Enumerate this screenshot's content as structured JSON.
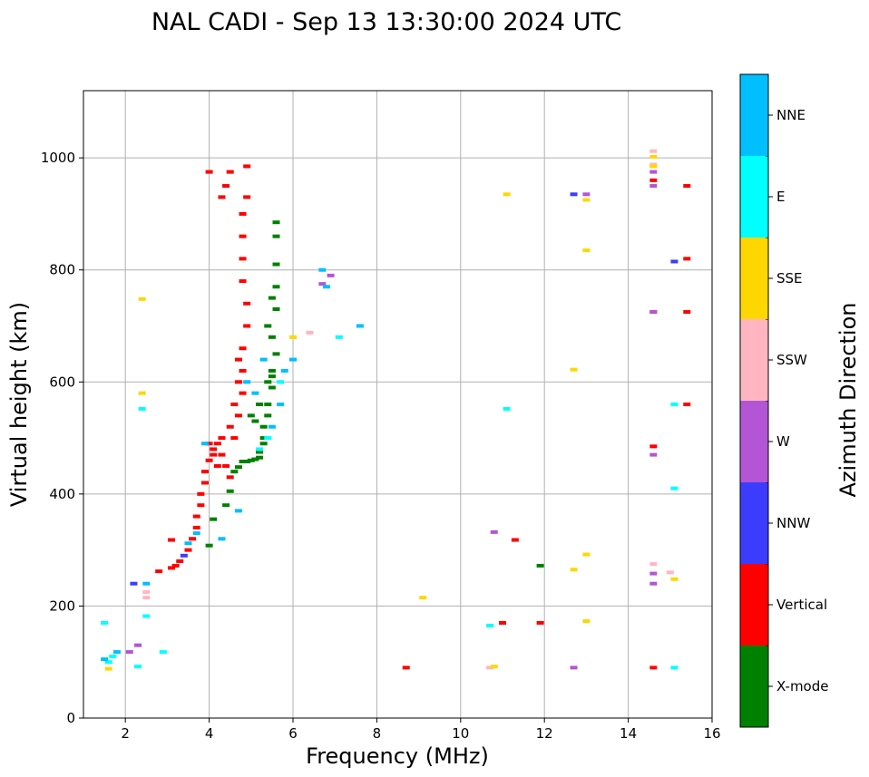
{
  "chart_data": {
    "type": "scatter",
    "title": "NAL CADI - Sep 13 13:30:00 2024 UTC",
    "xlabel": "Frequency (MHz)",
    "ylabel": "Virtual height (km)",
    "xlim": [
      1,
      16
    ],
    "ylim": [
      0,
      1120
    ],
    "xticks": [
      2,
      4,
      6,
      8,
      10,
      12,
      14,
      16
    ],
    "yticks": [
      0,
      200,
      400,
      600,
      800,
      1000
    ],
    "grid": true,
    "colorbar": {
      "label": "Azimuth Direction",
      "categories": [
        {
          "name": "X-mode",
          "color": "#008000"
        },
        {
          "name": "Vertical",
          "color": "#ff0000"
        },
        {
          "name": "NNW",
          "color": "#3c3cff"
        },
        {
          "name": "W",
          "color": "#b455d6"
        },
        {
          "name": "SSW",
          "color": "#ffb6c1"
        },
        {
          "name": "SSE",
          "color": "#ffd700"
        },
        {
          "name": "E",
          "color": "#00ffff"
        },
        {
          "name": "NNE",
          "color": "#00bfff"
        }
      ]
    },
    "series": [
      {
        "name": "X-mode",
        "points": [
          [
            4.1,
            355
          ],
          [
            4.4,
            380
          ],
          [
            4.5,
            405
          ],
          [
            4.6,
            440
          ],
          [
            4.7,
            448
          ],
          [
            4.8,
            458
          ],
          [
            4.9,
            458
          ],
          [
            5.0,
            460
          ],
          [
            5.1,
            462
          ],
          [
            5.2,
            465
          ],
          [
            5.2,
            475
          ],
          [
            5.3,
            490
          ],
          [
            5.3,
            500
          ],
          [
            5.3,
            520
          ],
          [
            5.4,
            540
          ],
          [
            5.4,
            560
          ],
          [
            5.5,
            590
          ],
          [
            5.5,
            610
          ],
          [
            5.6,
            650
          ],
          [
            5.5,
            680
          ],
          [
            5.6,
            730
          ],
          [
            5.5,
            750
          ],
          [
            5.6,
            770
          ],
          [
            5.6,
            810
          ],
          [
            5.6,
            860
          ],
          [
            5.6,
            885
          ],
          [
            11.9,
            272
          ],
          [
            11.0,
            170
          ],
          [
            4.0,
            308
          ],
          [
            5.0,
            540
          ],
          [
            5.1,
            530
          ],
          [
            5.2,
            560
          ],
          [
            5.4,
            600
          ],
          [
            5.5,
            620
          ],
          [
            5.4,
            700
          ]
        ]
      },
      {
        "name": "Vertical",
        "points": [
          [
            2.8,
            262
          ],
          [
            3.1,
            268
          ],
          [
            3.2,
            272
          ],
          [
            3.3,
            280
          ],
          [
            3.5,
            300
          ],
          [
            3.6,
            320
          ],
          [
            3.7,
            340
          ],
          [
            3.7,
            360
          ],
          [
            3.8,
            380
          ],
          [
            3.8,
            400
          ],
          [
            3.9,
            420
          ],
          [
            3.9,
            440
          ],
          [
            4.0,
            460
          ],
          [
            4.1,
            480
          ],
          [
            4.2,
            490
          ],
          [
            4.3,
            470
          ],
          [
            4.4,
            450
          ],
          [
            4.5,
            430
          ],
          [
            4.6,
            500
          ],
          [
            4.7,
            540
          ],
          [
            4.8,
            580
          ],
          [
            4.8,
            620
          ],
          [
            4.8,
            660
          ],
          [
            4.9,
            700
          ],
          [
            4.9,
            740
          ],
          [
            4.8,
            780
          ],
          [
            4.8,
            820
          ],
          [
            4.8,
            860
          ],
          [
            4.8,
            900
          ],
          [
            4.9,
            930
          ],
          [
            4.3,
            930
          ],
          [
            4.4,
            950
          ],
          [
            4.5,
            975
          ],
          [
            4.0,
            975
          ],
          [
            4.9,
            985
          ],
          [
            4.0,
            490
          ],
          [
            4.1,
            470
          ],
          [
            4.2,
            450
          ],
          [
            4.3,
            500
          ],
          [
            4.5,
            520
          ],
          [
            4.6,
            560
          ],
          [
            4.7,
            600
          ],
          [
            4.7,
            640
          ],
          [
            8.7,
            90
          ],
          [
            11.0,
            170
          ],
          [
            11.3,
            318
          ],
          [
            11.9,
            170
          ],
          [
            14.6,
            90
          ],
          [
            14.6,
            485
          ],
          [
            14.6,
            725
          ],
          [
            14.6,
            960
          ],
          [
            15.4,
            725
          ],
          [
            15.4,
            950
          ],
          [
            15.4,
            560
          ],
          [
            15.4,
            820
          ],
          [
            3.1,
            318
          ]
        ]
      },
      {
        "name": "NNW",
        "points": [
          [
            12.7,
            935
          ],
          [
            15.1,
            815
          ],
          [
            2.2,
            240
          ],
          [
            3.4,
            290
          ]
        ]
      },
      {
        "name": "W",
        "points": [
          [
            2.3,
            130
          ],
          [
            2.1,
            118
          ],
          [
            10.8,
            332
          ],
          [
            12.7,
            90
          ],
          [
            14.6,
            240
          ],
          [
            14.6,
            258
          ],
          [
            14.6,
            470
          ],
          [
            14.6,
            725
          ],
          [
            14.6,
            950
          ],
          [
            14.6,
            975
          ],
          [
            13.0,
            935
          ],
          [
            6.7,
            775
          ],
          [
            6.9,
            790
          ]
        ]
      },
      {
        "name": "SSW",
        "points": [
          [
            2.5,
            215
          ],
          [
            2.5,
            225
          ],
          [
            10.7,
            90
          ],
          [
            14.6,
            275
          ],
          [
            14.6,
            1012
          ],
          [
            14.6,
            988
          ],
          [
            6.4,
            688
          ],
          [
            15.0,
            260
          ]
        ]
      },
      {
        "name": "SSE",
        "points": [
          [
            1.6,
            88
          ],
          [
            2.4,
            580
          ],
          [
            2.4,
            748
          ],
          [
            9.1,
            215
          ],
          [
            10.8,
            92
          ],
          [
            11.1,
            935
          ],
          [
            12.7,
            265
          ],
          [
            12.7,
            622
          ],
          [
            13.0,
            835
          ],
          [
            13.0,
            925
          ],
          [
            13.0,
            292
          ],
          [
            13.0,
            173
          ],
          [
            14.6,
            1002
          ],
          [
            14.6,
            985
          ],
          [
            15.1,
            248
          ],
          [
            6.0,
            680
          ]
        ]
      },
      {
        "name": "E",
        "points": [
          [
            1.5,
            170
          ],
          [
            1.6,
            100
          ],
          [
            1.7,
            110
          ],
          [
            2.3,
            92
          ],
          [
            2.4,
            552
          ],
          [
            2.5,
            182
          ],
          [
            2.9,
            118
          ],
          [
            7.1,
            680
          ],
          [
            10.7,
            165
          ],
          [
            11.1,
            552
          ],
          [
            15.1,
            90
          ],
          [
            15.1,
            410
          ],
          [
            15.1,
            560
          ],
          [
            5.2,
            480
          ],
          [
            5.4,
            500
          ],
          [
            5.7,
            600
          ]
        ]
      },
      {
        "name": "NNE",
        "points": [
          [
            1.5,
            105
          ],
          [
            1.8,
            118
          ],
          [
            2.5,
            240
          ],
          [
            3.5,
            312
          ],
          [
            3.7,
            330
          ],
          [
            3.9,
            490
          ],
          [
            4.3,
            320
          ],
          [
            4.7,
            370
          ],
          [
            4.9,
            600
          ],
          [
            5.1,
            580
          ],
          [
            5.3,
            640
          ],
          [
            5.5,
            520
          ],
          [
            5.7,
            560
          ],
          [
            5.8,
            620
          ],
          [
            6.0,
            640
          ],
          [
            6.7,
            800
          ],
          [
            6.8,
            770
          ],
          [
            7.6,
            700
          ]
        ]
      }
    ]
  }
}
